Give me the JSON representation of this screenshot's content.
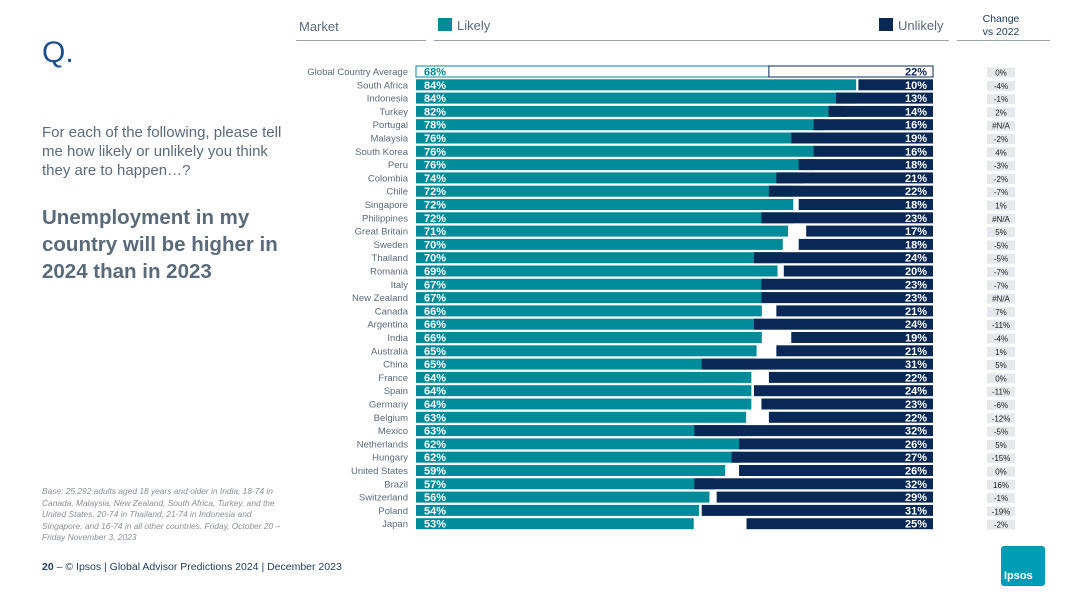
{
  "q_label": "Q.",
  "question": "For each of the following, please tell me how likely or unlikely you think they are to happen…?",
  "headline": "Unemployment in my country will be higher in 2024 than in 2023",
  "base_note": "Base: 25.292 adults aged 18 years and older in India, 18-74 in Canada, Malaysia, New Zealand, South Africa, Turkey, and the United States, 20-74 in Thailand, 21-74 in Indonesia and Singapore, and 16-74 in all other countries. Friday, October 20 – Friday November 3, 2023",
  "footer": {
    "page": "20",
    "dash": "–",
    "text": "© Ipsos | Global Advisor Predictions 2024 | December 2023"
  },
  "headers": {
    "market": "Market",
    "likely": "Likely",
    "unlikely": "Unlikely",
    "change_line1": "Change",
    "change_line2": "vs 2022"
  },
  "logo": "Ipsos",
  "colors": {
    "likely": "#008b9a",
    "unlikely": "#0a2856",
    "text": "#5a6a7a",
    "change_bg": "#e6e8eb"
  },
  "chart_data": {
    "type": "bar",
    "title": "Unemployment in my country will be higher in 2024 than in 2023",
    "categories": [
      "Global Country Average",
      "South Africa",
      "Indonesia",
      "Turkey",
      "Portugal",
      "Malaysia",
      "South Korea",
      "Peru",
      "Colombia",
      "Chile",
      "Singapore",
      "Philippines",
      "Great Britain",
      "Sweden",
      "Thailand",
      "Romania",
      "Italy",
      "New Zealand",
      "Canada",
      "Argentina",
      "India",
      "Australia",
      "China",
      "France",
      "Spain",
      "Germany",
      "Belgium",
      "Mexico",
      "Netherlands",
      "Hungary",
      "United States",
      "Brazil",
      "Switzerland",
      "Poland",
      "Japan"
    ],
    "series": [
      {
        "name": "Likely",
        "values": [
          68,
          84,
          84,
          82,
          78,
          76,
          76,
          76,
          74,
          72,
          72,
          72,
          71,
          70,
          70,
          69,
          67,
          67,
          66,
          66,
          66,
          65,
          65,
          64,
          64,
          64,
          63,
          63,
          62,
          62,
          59,
          57,
          56,
          54,
          53
        ]
      },
      {
        "name": "Unlikely",
        "values": [
          22,
          10,
          13,
          14,
          16,
          19,
          16,
          18,
          21,
          22,
          18,
          23,
          17,
          18,
          24,
          20,
          23,
          23,
          21,
          24,
          19,
          21,
          31,
          22,
          24,
          23,
          22,
          32,
          26,
          27,
          26,
          32,
          29,
          31,
          25
        ]
      },
      {
        "name": "Change vs 2022",
        "values": [
          "0%",
          "-4%",
          "-1%",
          "2%",
          "#N/A",
          "-2%",
          "4%",
          "-3%",
          "-2%",
          "-7%",
          "1%",
          "#N/A",
          "5%",
          "-5%",
          "-5%",
          "-7%",
          "-7%",
          "#N/A",
          "7%",
          "-11%",
          "-4%",
          "1%",
          "5%",
          "0%",
          "-11%",
          "-6%",
          "-12%",
          "-5%",
          "5%",
          "-15%",
          "0%",
          "16%",
          "-1%",
          "-19%",
          "-2%"
        ]
      }
    ],
    "xlabel": "",
    "ylabel": "",
    "xlim": [
      0,
      100
    ]
  }
}
